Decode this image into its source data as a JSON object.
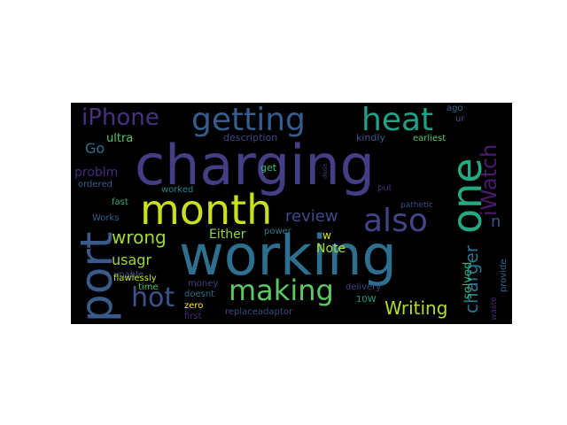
{
  "words": [
    {
      "text": "charging",
      "color": "#433e85"
    },
    {
      "text": "working",
      "color": "#2e6e8e"
    },
    {
      "text": "month",
      "color": "#c8e020"
    },
    {
      "text": "port",
      "color": "#3b5a8c"
    },
    {
      "text": "one",
      "color": "#24aa83"
    },
    {
      "text": "getting",
      "color": "#365c8d"
    },
    {
      "text": "heat",
      "color": "#1fa188"
    },
    {
      "text": "iPhone",
      "color": "#46327e"
    },
    {
      "text": "making",
      "color": "#5cc863"
    },
    {
      "text": "also",
      "color": "#414487"
    },
    {
      "text": "hot",
      "color": "#3b528b"
    },
    {
      "text": "iWatch",
      "color": "#481b6d"
    },
    {
      "text": "charger",
      "color": "#2c728e"
    },
    {
      "text": "wrong",
      "color": "#a0da39"
    },
    {
      "text": "Writing",
      "color": "#b2dd2d"
    },
    {
      "text": "review",
      "color": "#3e4a89"
    },
    {
      "text": "usagr",
      "color": "#9dd93b"
    },
    {
      "text": "Either",
      "color": "#90d743"
    },
    {
      "text": "problm",
      "color": "#482878"
    },
    {
      "text": "Go",
      "color": "#2d708e"
    },
    {
      "text": "ultra",
      "color": "#54c568"
    },
    {
      "text": "Note",
      "color": "#a8db34"
    },
    {
      "text": "solved",
      "color": "#31b57b"
    },
    {
      "text": "description",
      "color": "#414487"
    },
    {
      "text": "kindly",
      "color": "#38588c"
    },
    {
      "text": "earliest",
      "color": "#5ec962"
    },
    {
      "text": "ago",
      "color": "#31688e"
    },
    {
      "text": "ur",
      "color": "#3b528b"
    },
    {
      "text": "n",
      "color": "#3b528b"
    },
    {
      "text": "ordered",
      "color": "#355f8d"
    },
    {
      "text": "get",
      "color": "#3fbc73"
    },
    {
      "text": "dude",
      "color": "#472d7b"
    },
    {
      "text": "fast",
      "color": "#26ad81"
    },
    {
      "text": "worked",
      "color": "#24868e"
    },
    {
      "text": "put",
      "color": "#482576"
    },
    {
      "text": "pathetic",
      "color": "#3e4a89"
    },
    {
      "text": "Works",
      "color": "#355f8d"
    },
    {
      "text": "power",
      "color": "#2a788e"
    },
    {
      "text": "w",
      "color": "#dde318"
    },
    {
      "text": "unable",
      "color": "#38588c"
    },
    {
      "text": "flawlessly",
      "color": "#cae11f"
    },
    {
      "text": "time",
      "color": "#4ac16d"
    },
    {
      "text": "money",
      "color": "#414487"
    },
    {
      "text": "doesnt",
      "color": "#2d708e"
    },
    {
      "text": "zero",
      "color": "#fde725"
    },
    {
      "text": "first",
      "color": "#472d7b"
    },
    {
      "text": "replaceadaptor",
      "color": "#3e4989"
    },
    {
      "text": "delivery",
      "color": "#414487"
    },
    {
      "text": "10W",
      "color": "#1f9e89"
    },
    {
      "text": "provide",
      "color": "#31688e"
    },
    {
      "text": "waste",
      "color": "#482475"
    }
  ]
}
